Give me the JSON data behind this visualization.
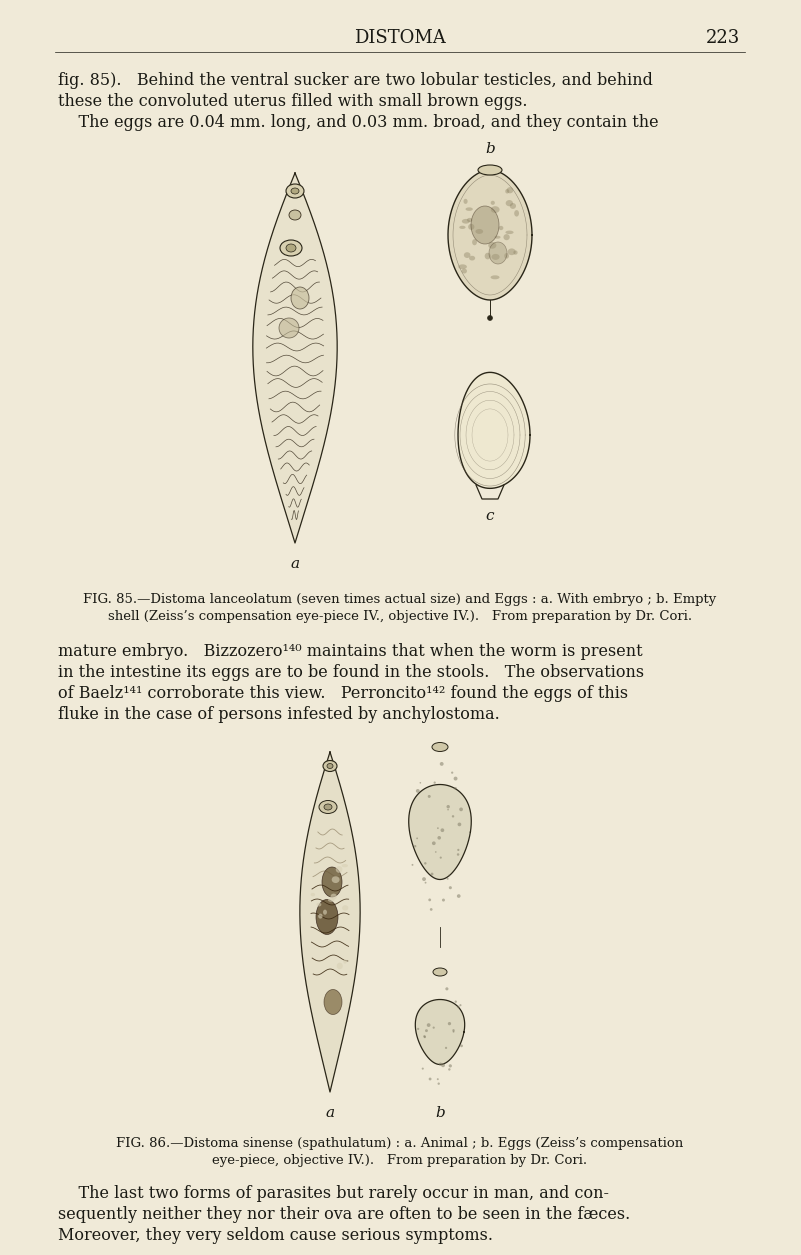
{
  "background_color": "#f0ead8",
  "text_color": "#1a1a14",
  "header_text": "DISTOMA",
  "header_page": "223",
  "fig85_caption_line1": "FIG. 85.—Distoma lanceolatum (seven times actual size) and Eggs : a. With embryo ; b. Empty",
  "fig85_caption_line2": "shell (Zeiss’s compensation eye-piece IV., objective IV.).   From preparation by Dr. Cori.",
  "fig86_caption_line1": "FIG. 86.—Distoma sinense (spathulatum) : a. Animal ; b. Eggs (Zeiss’s compensation",
  "fig86_caption_line2": "eye-piece, objective IV.).   From preparation by Dr. Cori.",
  "para1_line1": "fig. 85).   Behind the ventral sucker are two lobular testicles, and behind",
  "para1_line2": "these the convoluted uterus filled with small brown eggs.",
  "para1_line3": "    The eggs are 0.04 mm. long, and 0.03 mm. broad, and they contain the",
  "para2_line1": "mature embryo.   Bizzozero¹⁴⁰ maintains that when the worm is present",
  "para2_line2": "in the intestine its eggs are to be found in the stools.   The observations",
  "para2_line3": "of Baelz¹⁴¹ corroborate this view.   Perroncito¹⁴² found the eggs of this",
  "para2_line4": "fluke in the case of persons infested by anchylostoma.",
  "para3_line1": "    The last two forms of parasites but rarely occur in man, and con-",
  "para3_line2": "sequently neither they nor their ova are often to be seen in the fæces.",
  "para3_line3": "Moreover, they very seldom cause serious symptoms."
}
